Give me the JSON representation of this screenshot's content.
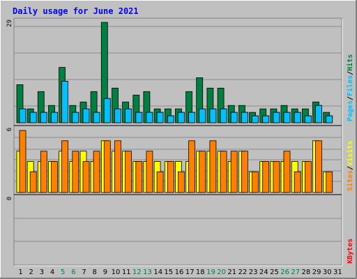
{
  "title": "Daily usage for June 2021",
  "colors": {
    "background": "#C0C0C0",
    "frame_light": "#FFFFFF",
    "frame_dark": "#808080",
    "grid": "#8C8C8C",
    "title": "#0000FF",
    "hits": "#008040",
    "files": "#00C0FF",
    "visits": "#FFFF00",
    "sites": "#FF8000",
    "kbytes": "#FF0000",
    "day_normal": "#000000",
    "day_weekend": "#008040"
  },
  "chart_data": [
    {
      "type": "bar",
      "panel": "hits-files-pages",
      "categories": [
        "1",
        "2",
        "3",
        "4",
        "5",
        "6",
        "7",
        "8",
        "9",
        "10",
        "11",
        "12",
        "13",
        "14",
        "15",
        "16",
        "17",
        "18",
        "19",
        "20",
        "21",
        "22",
        "23",
        "24",
        "25",
        "26",
        "27",
        "28",
        "29",
        "30",
        "31"
      ],
      "ymax_label": "29",
      "ylim": [
        0,
        29
      ],
      "series": [
        {
          "name": "Hits",
          "values": [
            11,
            4,
            9,
            5,
            16,
            5,
            6,
            9,
            29,
            10,
            6,
            8,
            9,
            4,
            4,
            4,
            9,
            13,
            10,
            10,
            5,
            5,
            3,
            4,
            4,
            5,
            4,
            4,
            6,
            3,
            null
          ]
        },
        {
          "name": "Files",
          "values": [
            4,
            3,
            3,
            3,
            12,
            3,
            4,
            3,
            7,
            4,
            4,
            3,
            3,
            3,
            2,
            3,
            3,
            4,
            4,
            4,
            3,
            3,
            2,
            2,
            3,
            3,
            3,
            2,
            5,
            2,
            null
          ]
        },
        {
          "name": "Pages",
          "values": [
            4,
            3,
            3,
            3,
            12,
            3,
            4,
            3,
            7,
            4,
            4,
            3,
            3,
            3,
            2,
            3,
            3,
            4,
            4,
            4,
            3,
            3,
            2,
            2,
            3,
            3,
            3,
            2,
            5,
            2,
            null
          ]
        }
      ],
      "legend": [
        "Pages",
        "/",
        "Files",
        "/",
        "Hits"
      ]
    },
    {
      "type": "bar",
      "panel": "visits-sites",
      "categories": [
        "1",
        "2",
        "3",
        "4",
        "5",
        "6",
        "7",
        "8",
        "9",
        "10",
        "11",
        "12",
        "13",
        "14",
        "15",
        "16",
        "17",
        "18",
        "19",
        "20",
        "21",
        "22",
        "23",
        "24",
        "25",
        "26",
        "27",
        "28",
        "29",
        "30",
        "31"
      ],
      "ymax_label": "6",
      "ylim": [
        0,
        6
      ],
      "series": [
        {
          "name": "Visits",
          "values": [
            4,
            3,
            3,
            3,
            4,
            3,
            4,
            3,
            5,
            4,
            4,
            3,
            3,
            3,
            3,
            3,
            3,
            4,
            4,
            4,
            3,
            4,
            2,
            3,
            3,
            3,
            3,
            3,
            5,
            2,
            null
          ]
        },
        {
          "name": "Sites",
          "values": [
            6,
            2,
            4,
            3,
            5,
            4,
            3,
            4,
            5,
            5,
            4,
            3,
            4,
            2,
            3,
            2,
            5,
            4,
            5,
            4,
            4,
            4,
            2,
            3,
            3,
            4,
            2,
            3,
            5,
            2,
            null
          ]
        }
      ],
      "legend": [
        "Sites",
        "/",
        "Visits"
      ]
    },
    {
      "type": "bar",
      "panel": "kbytes",
      "categories": [
        "1",
        "2",
        "3",
        "4",
        "5",
        "6",
        "7",
        "8",
        "9",
        "10",
        "11",
        "12",
        "13",
        "14",
        "15",
        "16",
        "17",
        "18",
        "19",
        "20",
        "21",
        "22",
        "23",
        "24",
        "25",
        "26",
        "27",
        "28",
        "29",
        "30",
        "31"
      ],
      "ymax_label": "0",
      "series": [
        {
          "name": "KBytes",
          "values": [
            0,
            0,
            0,
            0,
            0,
            0,
            0,
            0,
            0,
            0,
            0,
            0,
            0,
            0,
            0,
            0,
            0,
            0,
            0,
            0,
            0,
            0,
            0,
            0,
            0,
            0,
            0,
            0,
            0,
            0,
            null
          ]
        }
      ],
      "legend": [
        "KBytes"
      ]
    }
  ],
  "weekend_days": [
    "5",
    "6",
    "12",
    "13",
    "19",
    "20",
    "26",
    "27"
  ]
}
